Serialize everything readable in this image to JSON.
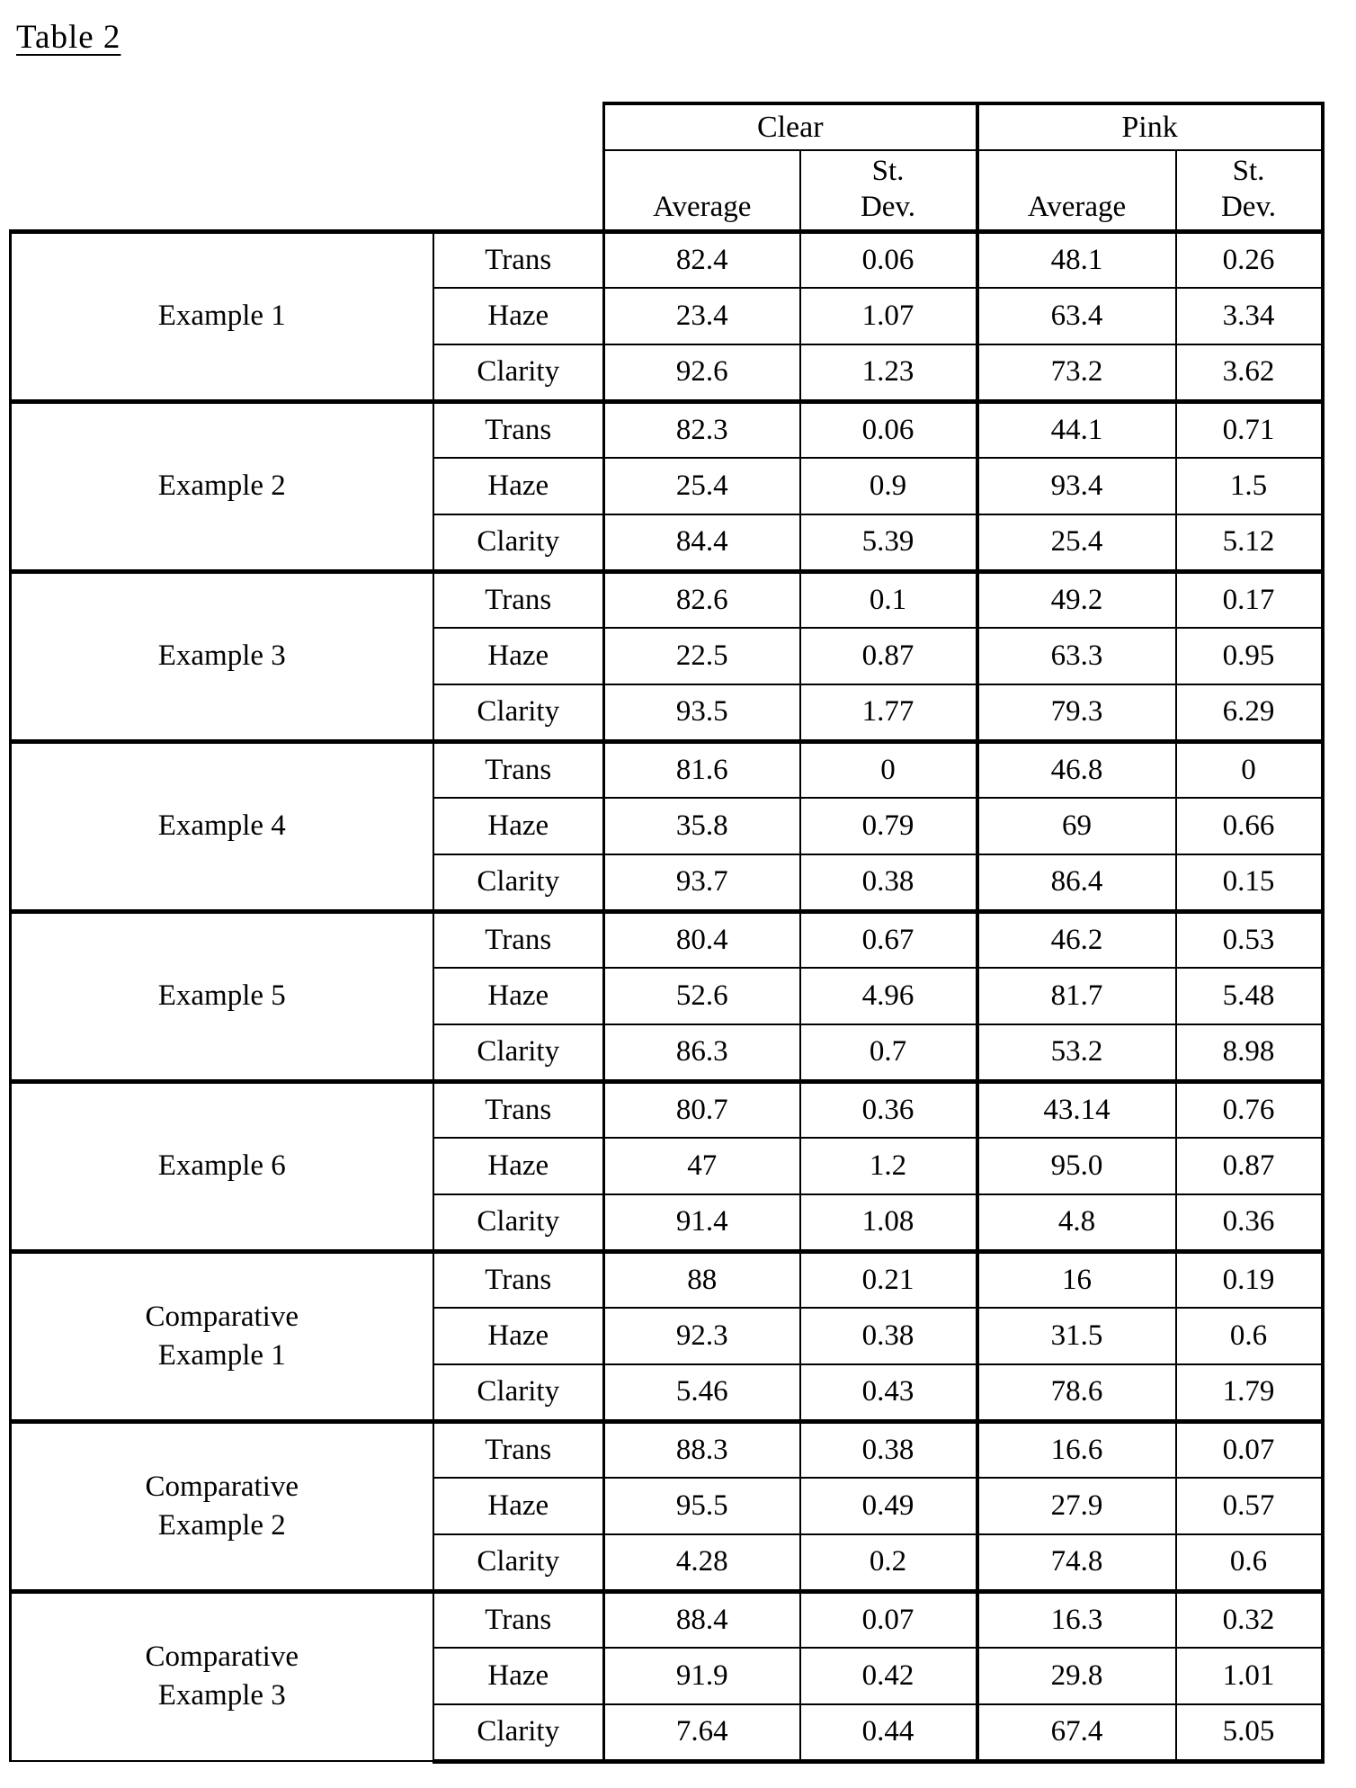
{
  "page": {
    "title": "Table 2"
  },
  "table": {
    "column_groups": [
      {
        "label": "Clear"
      },
      {
        "label": "Pink"
      }
    ],
    "sub_headers": {
      "clear_average": "Average",
      "clear_stdev": "St.\nDev.",
      "pink_average": "Average",
      "pink_stdev": "St.\nDev."
    },
    "groups": [
      {
        "label": "Example 1",
        "rows": [
          {
            "measure": "Trans",
            "clear_avg": "82.4",
            "clear_stdev": "0.06",
            "pink_avg": "48.1",
            "pink_stdev": "0.26"
          },
          {
            "measure": "Haze",
            "clear_avg": "23.4",
            "clear_stdev": "1.07",
            "pink_avg": "63.4",
            "pink_stdev": "3.34"
          },
          {
            "measure": "Clarity",
            "clear_avg": "92.6",
            "clear_stdev": "1.23",
            "pink_avg": "73.2",
            "pink_stdev": "3.62"
          }
        ]
      },
      {
        "label": "Example 2",
        "rows": [
          {
            "measure": "Trans",
            "clear_avg": "82.3",
            "clear_stdev": "0.06",
            "pink_avg": "44.1",
            "pink_stdev": "0.71"
          },
          {
            "measure": "Haze",
            "clear_avg": "25.4",
            "clear_stdev": "0.9",
            "pink_avg": "93.4",
            "pink_stdev": "1.5"
          },
          {
            "measure": "Clarity",
            "clear_avg": "84.4",
            "clear_stdev": "5.39",
            "pink_avg": "25.4",
            "pink_stdev": "5.12"
          }
        ]
      },
      {
        "label": "Example 3",
        "rows": [
          {
            "measure": "Trans",
            "clear_avg": "82.6",
            "clear_stdev": "0.1",
            "pink_avg": "49.2",
            "pink_stdev": "0.17"
          },
          {
            "measure": "Haze",
            "clear_avg": "22.5",
            "clear_stdev": "0.87",
            "pink_avg": "63.3",
            "pink_stdev": "0.95"
          },
          {
            "measure": "Clarity",
            "clear_avg": "93.5",
            "clear_stdev": "1.77",
            "pink_avg": "79.3",
            "pink_stdev": "6.29"
          }
        ]
      },
      {
        "label": "Example 4",
        "rows": [
          {
            "measure": "Trans",
            "clear_avg": "81.6",
            "clear_stdev": "0",
            "pink_avg": "46.8",
            "pink_stdev": "0"
          },
          {
            "measure": "Haze",
            "clear_avg": "35.8",
            "clear_stdev": "0.79",
            "pink_avg": "69",
            "pink_stdev": "0.66"
          },
          {
            "measure": "Clarity",
            "clear_avg": "93.7",
            "clear_stdev": "0.38",
            "pink_avg": "86.4",
            "pink_stdev": "0.15"
          }
        ]
      },
      {
        "label": "Example 5",
        "rows": [
          {
            "measure": "Trans",
            "clear_avg": "80.4",
            "clear_stdev": "0.67",
            "pink_avg": "46.2",
            "pink_stdev": "0.53"
          },
          {
            "measure": "Haze",
            "clear_avg": "52.6",
            "clear_stdev": "4.96",
            "pink_avg": "81.7",
            "pink_stdev": "5.48"
          },
          {
            "measure": "Clarity",
            "clear_avg": "86.3",
            "clear_stdev": "0.7",
            "pink_avg": "53.2",
            "pink_stdev": "8.98"
          }
        ]
      },
      {
        "label": "Example 6",
        "rows": [
          {
            "measure": "Trans",
            "clear_avg": "80.7",
            "clear_stdev": "0.36",
            "pink_avg": "43.14",
            "pink_stdev": "0.76"
          },
          {
            "measure": "Haze",
            "clear_avg": "47",
            "clear_stdev": "1.2",
            "pink_avg": "95.0",
            "pink_stdev": "0.87"
          },
          {
            "measure": "Clarity",
            "clear_avg": "91.4",
            "clear_stdev": "1.08",
            "pink_avg": "4.8",
            "pink_stdev": "0.36"
          }
        ]
      },
      {
        "label": "Comparative\nExample 1",
        "rows": [
          {
            "measure": "Trans",
            "clear_avg": "88",
            "clear_stdev": "0.21",
            "pink_avg": "16",
            "pink_stdev": "0.19"
          },
          {
            "measure": "Haze",
            "clear_avg": "92.3",
            "clear_stdev": "0.38",
            "pink_avg": "31.5",
            "pink_stdev": "0.6"
          },
          {
            "measure": "Clarity",
            "clear_avg": "5.46",
            "clear_stdev": "0.43",
            "pink_avg": "78.6",
            "pink_stdev": "1.79"
          }
        ]
      },
      {
        "label": "Comparative\nExample 2",
        "rows": [
          {
            "measure": "Trans",
            "clear_avg": "88.3",
            "clear_stdev": "0.38",
            "pink_avg": "16.6",
            "pink_stdev": "0.07"
          },
          {
            "measure": "Haze",
            "clear_avg": "95.5",
            "clear_stdev": "0.49",
            "pink_avg": "27.9",
            "pink_stdev": "0.57"
          },
          {
            "measure": "Clarity",
            "clear_avg": "4.28",
            "clear_stdev": "0.2",
            "pink_avg": "74.8",
            "pink_stdev": "0.6"
          }
        ]
      },
      {
        "label": "Comparative\nExample 3",
        "rows": [
          {
            "measure": "Trans",
            "clear_avg": "88.4",
            "clear_stdev": "0.07",
            "pink_avg": "16.3",
            "pink_stdev": "0.32"
          },
          {
            "measure": "Haze",
            "clear_avg": "91.9",
            "clear_stdev": "0.42",
            "pink_avg": "29.8",
            "pink_stdev": "1.01"
          },
          {
            "measure": "Clarity",
            "clear_avg": "7.64",
            "clear_stdev": "0.44",
            "pink_avg": "67.4",
            "pink_stdev": "5.05"
          }
        ]
      }
    ]
  }
}
